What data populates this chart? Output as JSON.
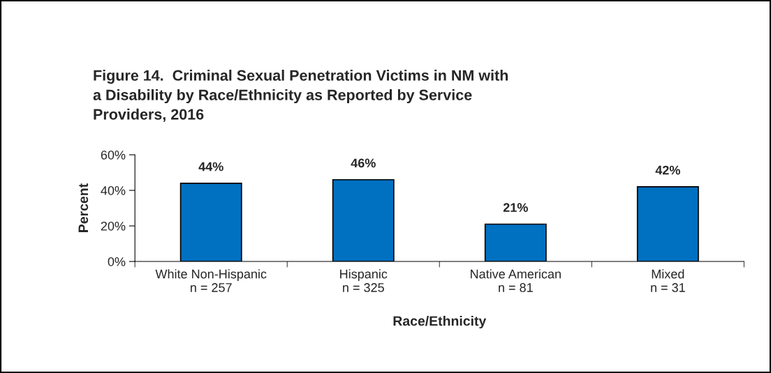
{
  "chart_data": {
    "type": "bar",
    "title": "Figure 14.  Criminal Sexual Penetration Victims in NM with\na Disability by Race/Ethnicity as Reported by Service\nProviders, 2016",
    "xlabel": "Race/Ethnicity",
    "ylabel": "Percent",
    "categories": [
      "White Non-Hispanic\nn = 257",
      "Hispanic\nn = 325",
      "Native American\nn = 81",
      "Mixed\nn = 31"
    ],
    "values": [
      44,
      46,
      21,
      42
    ],
    "value_labels": [
      "44%",
      "46%",
      "21%",
      "42%"
    ],
    "color": "#0070c0",
    "ylim": [
      0,
      60
    ],
    "yticks": [
      {
        "value": 0,
        "label": "0%"
      },
      {
        "value": 20,
        "label": "20%"
      },
      {
        "value": 40,
        "label": "40%"
      },
      {
        "value": 60,
        "label": "60%"
      }
    ],
    "grid": false,
    "legend": false
  }
}
